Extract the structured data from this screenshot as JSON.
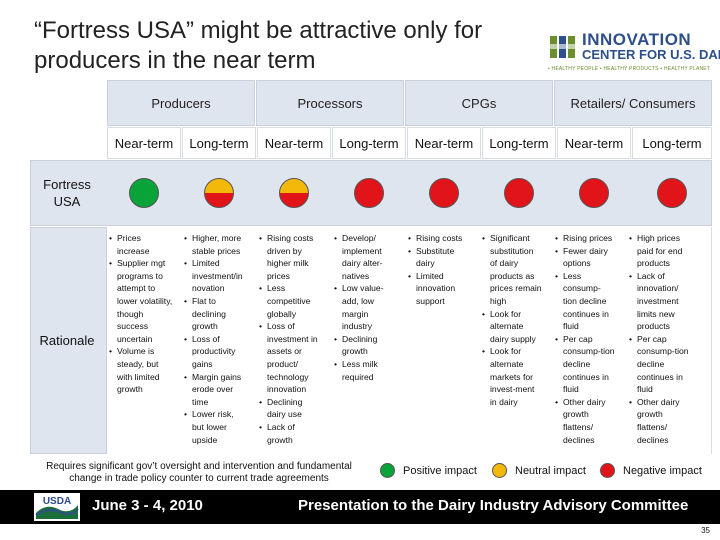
{
  "slide": {
    "title": "“Fortress USA” might be attractive only for producers in the near term",
    "page_number": "35"
  },
  "logo": {
    "line1": "INNOVATION",
    "line2": "CENTER FOR U.S. DAIRY.",
    "tagline": "• HEALTHY PEOPLE • HEALTHY PRODUCTS • HEALTHY PLANET"
  },
  "groups": [
    {
      "label": "Producers"
    },
    {
      "label": "Processors"
    },
    {
      "label": "CPGs"
    },
    {
      "label": "Retailers/ Consumers"
    }
  ],
  "columns": [
    {
      "label": "Near-term",
      "impact": "positive"
    },
    {
      "label": "Long-term",
      "impact": "neutral-negative"
    },
    {
      "label": "Near-term",
      "impact": "neutral-negative"
    },
    {
      "label": "Long-term",
      "impact": "negative"
    },
    {
      "label": "Near-term",
      "impact": "negative"
    },
    {
      "label": "Long-term",
      "impact": "negative"
    },
    {
      "label": "Near-term",
      "impact": "negative"
    },
    {
      "label": "Long-term",
      "impact": "negative"
    }
  ],
  "rows": {
    "fortress_label": "Fortress USA",
    "rationale_label": "Rationale"
  },
  "rationale": [
    {
      "items": [
        {
          "lines": [
            "Prices",
            "increase"
          ]
        },
        {
          "lines": [
            "Supplier mgt",
            "programs to",
            "attempt to",
            "lower volatility,",
            "though",
            "success",
            "uncertain"
          ]
        },
        {
          "lines": [
            "Volume is",
            "steady, but",
            "with limited",
            "growth"
          ]
        }
      ]
    },
    {
      "items": [
        {
          "lines": [
            "Higher, more",
            "stable prices"
          ]
        },
        {
          "lines": [
            "Limited",
            "investment/in",
            "novation"
          ]
        },
        {
          "lines": [
            "Flat to",
            "declining",
            "growth"
          ]
        },
        {
          "lines": [
            "Loss of",
            "productivity",
            "gains"
          ]
        },
        {
          "lines": [
            "Margin gains",
            "erode over",
            "time"
          ]
        },
        {
          "lines": [
            "Lower risk,",
            "but lower",
            "upside"
          ]
        }
      ]
    },
    {
      "items": [
        {
          "lines": [
            "Rising costs",
            "driven by",
            "higher milk",
            "prices"
          ]
        },
        {
          "lines": [
            "Less",
            "competitive",
            "globally"
          ]
        },
        {
          "lines": [
            "Loss of",
            "investment in",
            "assets or",
            "product/",
            "technology",
            "innovation"
          ]
        },
        {
          "lines": [
            "Declining",
            "dairy use"
          ]
        },
        {
          "lines": [
            "Lack of",
            "growth"
          ]
        }
      ]
    },
    {
      "items": [
        {
          "lines": [
            "Develop/",
            "implement",
            "dairy alter-",
            "natives"
          ]
        },
        {
          "lines": [
            "Low value-",
            "add, low",
            "margin",
            "industry"
          ]
        },
        {
          "lines": [
            "Declining",
            "growth"
          ]
        },
        {
          "lines": [
            "Less milk",
            "required"
          ]
        }
      ]
    },
    {
      "items": [
        {
          "lines": [
            "Rising costs"
          ]
        },
        {
          "lines": [
            "Substitute",
            "dairy"
          ]
        },
        {
          "lines": [
            "Limited",
            "innovation",
            "support"
          ]
        }
      ]
    },
    {
      "items": [
        {
          "lines": [
            "Significant",
            "substitution",
            "of dairy",
            "products as",
            "prices remain",
            "high"
          ]
        },
        {
          "lines": [
            "Look for",
            "alternate",
            "dairy supply"
          ]
        },
        {
          "lines": [
            "Look for",
            "alternate",
            "markets for",
            "invest-ment",
            "in dairy"
          ]
        }
      ]
    },
    {
      "items": [
        {
          "lines": [
            "Rising prices"
          ]
        },
        {
          "lines": [
            "Fewer dairy",
            "options"
          ]
        },
        {
          "lines": [
            "Less",
            "consump-",
            "tion decline",
            "continues in",
            "fluid"
          ]
        },
        {
          "lines": [
            "Per cap",
            "consump-tion",
            "decline",
            "continues in",
            "fluid"
          ]
        },
        {
          "lines": [
            "Other dairy",
            "growth",
            "flattens/",
            "declines"
          ]
        }
      ]
    },
    {
      "items": [
        {
          "lines": [
            "High prices",
            "paid for end",
            "products"
          ]
        },
        {
          "lines": [
            "Lack of",
            "innovation/",
            "investment",
            "limits new",
            "products"
          ]
        },
        {
          "lines": [
            "Per cap",
            "consump-tion",
            "decline",
            "continues in",
            "fluid"
          ]
        },
        {
          "lines": [
            "Other dairy",
            "growth",
            "flattens/",
            "declines"
          ]
        }
      ]
    }
  ],
  "note": "Requires significant gov’t oversight and intervention and fundamental change in trade policy counter to current trade agreements",
  "legend": {
    "positive": "Positive impact",
    "neutral": "Neutral impact",
    "negative": "Negative impact"
  },
  "footer": {
    "usda": "USDA",
    "date": "June 3 - 4, 2010",
    "presentation": "Presentation to the Dairy Industry Advisory Committee"
  },
  "colors": {
    "positive": "#0aa33a",
    "neutral": "#f2b90a",
    "negative": "#e1141a",
    "band": "#dfe5ee"
  }
}
